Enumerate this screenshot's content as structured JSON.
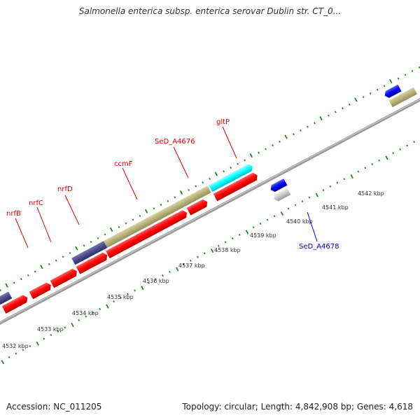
{
  "title": "Salmonella enterica subsp. enterica serovar Dublin str. CT_0...",
  "footer": {
    "accession": "Accession: NC_011205",
    "topology": "Topology: circular; Length: 4,842,908 bp; Genes: 4,618"
  },
  "colors": {
    "cds_red": "#ff0000",
    "dark_purple": "#4a4a8c",
    "khaki": "#b7b07a",
    "cyan": "#00ffff",
    "blue": "#0000ee",
    "gray_feature": "#c8c8c8",
    "backbone": "#9a9a9a",
    "tick_green": "#1a8a1a",
    "label_red": "#e00000",
    "label_blue": "#0000cc"
  },
  "kbp_labels": [
    "4532 kbp",
    "4533 kbp",
    "4534 kbp",
    "4535 kbp",
    "4536 kbp",
    "4537 kbp",
    "4538 kbp",
    "4539 kbp",
    "4540 kbp",
    "4541 kbp",
    "4542 kbp"
  ],
  "gene_labels": [
    {
      "text": "nrfB",
      "color": "red"
    },
    {
      "text": "nrfC",
      "color": "red"
    },
    {
      "text": "nrfD",
      "color": "red"
    },
    {
      "text": "ccmF",
      "color": "red"
    },
    {
      "text": "SeD_A4676",
      "color": "red"
    },
    {
      "text": "gltP",
      "color": "red"
    },
    {
      "text": "SeD_A4678",
      "color": "blue"
    }
  ]
}
